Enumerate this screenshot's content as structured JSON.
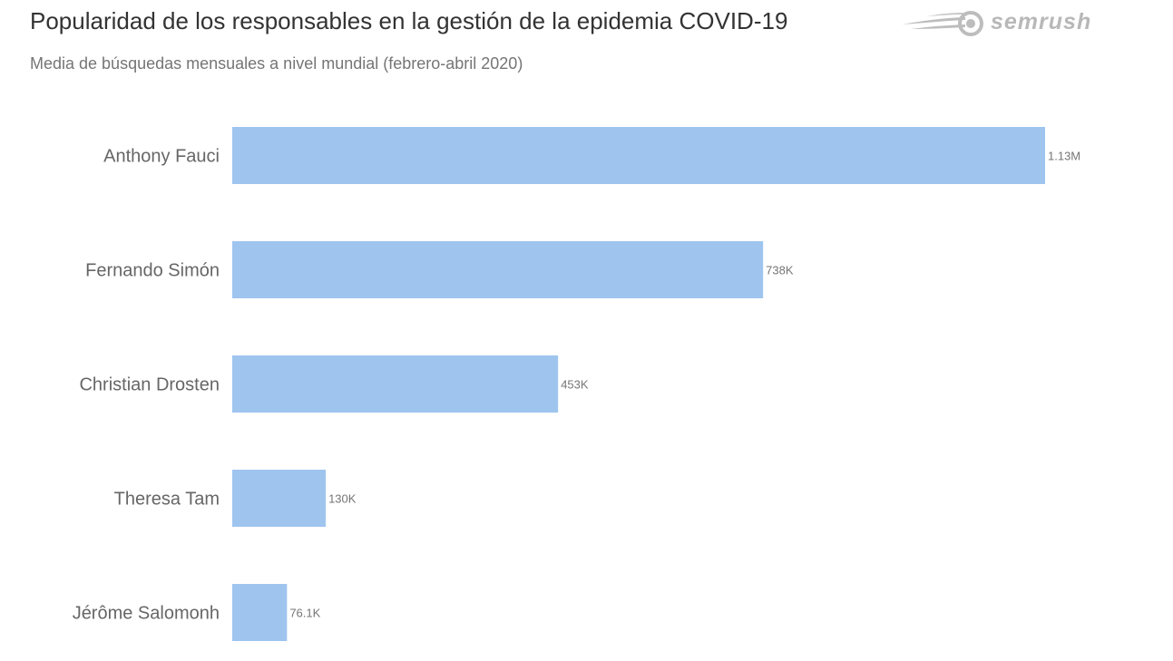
{
  "header": {
    "title": "Popularidad de los responsables en la gestión de la epidemia COVID-19",
    "subtitle": "Media de búsquedas mensuales a nivel mundial (febrero-abril 2020)"
  },
  "brand": {
    "name": "semrush",
    "icon": "semrush-fireball-icon",
    "color": "#b8b8b8"
  },
  "chart_data": {
    "type": "bar",
    "orientation": "horizontal",
    "title": "Popularidad de los responsables en la gestión de la epidemia COVID-19",
    "subtitle": "Media de búsquedas mensuales a nivel mundial (febrero-abril 2020)",
    "categories": [
      "Anthony Fauci",
      "Fernando Simón",
      "Christian Drosten",
      "Theresa Tam",
      "Jérôme Salomonh"
    ],
    "values": [
      1130000,
      738000,
      453000,
      130000,
      76100
    ],
    "value_labels": [
      "1.13M",
      "738K",
      "453K",
      "130K",
      "76.1K"
    ],
    "bar_color": "#9fc5ef",
    "xlim": [
      0,
      1130000
    ],
    "grid": false,
    "legend": "none"
  }
}
